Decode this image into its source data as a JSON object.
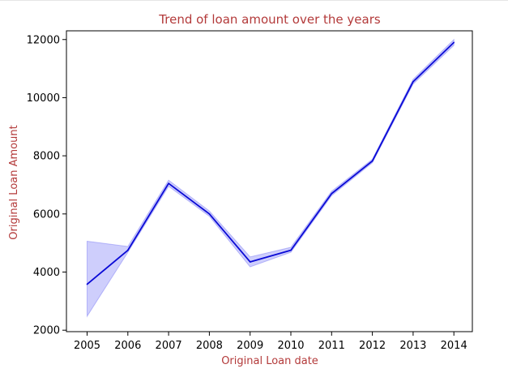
{
  "colors": {
    "line": "#0a0ad6",
    "band": "#7373f5",
    "title": "#b33a3a",
    "axis": "#000000"
  },
  "chart_data": {
    "type": "line",
    "title": "Trend of loan amount over the years",
    "xlabel": "Original Loan date",
    "ylabel": "Original Loan Amount",
    "x": [
      "2005",
      "2006",
      "2007",
      "2008",
      "2009",
      "2010",
      "2011",
      "2012",
      "2013",
      "2014"
    ],
    "y_ticks": [
      2000,
      4000,
      6000,
      8000,
      10000,
      12000
    ],
    "ylim": [
      1950,
      12300
    ],
    "grid": false,
    "legend": "none",
    "series": [
      {
        "values": [
          3580,
          4750,
          7050,
          6000,
          4350,
          4750,
          6700,
          7820,
          10550,
          11900
        ],
        "ci_lower": [
          2480,
          4680,
          6950,
          5920,
          4180,
          4680,
          6630,
          7760,
          10470,
          11800
        ],
        "ci_upper": [
          5060,
          4880,
          7160,
          6100,
          4520,
          4850,
          6780,
          7880,
          10630,
          12000
        ]
      }
    ]
  }
}
